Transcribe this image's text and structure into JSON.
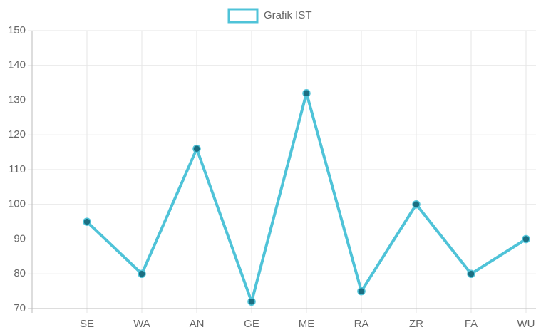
{
  "chart_data": {
    "type": "line",
    "categories": [
      null,
      "SE",
      "WA",
      "AN",
      "GE",
      "ME",
      "RA",
      "ZR",
      "FA",
      "WU"
    ],
    "series": [
      {
        "name": "Grafik IST",
        "color": "#4fc3d8",
        "point_color": "#1b6f82",
        "values": [
          null,
          95,
          80,
          116,
          72,
          132,
          75,
          100,
          80,
          90
        ]
      }
    ],
    "ylim": [
      70,
      150
    ],
    "yticks": [
      70,
      80,
      90,
      100,
      110,
      120,
      130,
      140,
      150
    ],
    "grid": true,
    "legend": "top"
  }
}
